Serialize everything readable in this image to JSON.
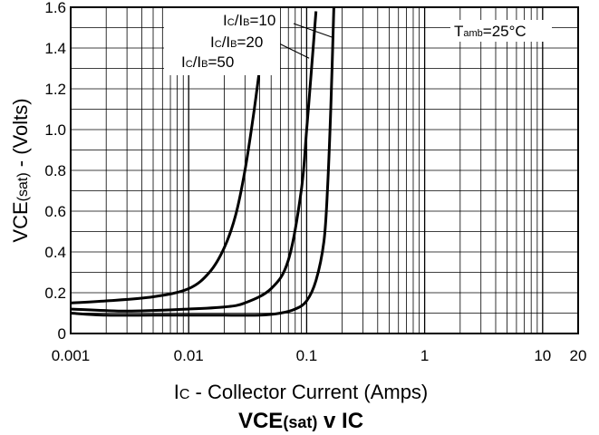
{
  "chart_data": {
    "type": "line",
    "title": {
      "main": "VCE",
      "sub": "(sat)",
      "rest": " v IC"
    },
    "xlabel": {
      "main": "I",
      "sub": "C",
      "rest": " - Collector Current (Amps)"
    },
    "ylabel": {
      "main": "VCE",
      "sub": "(sat)",
      "rest": " - (Volts)"
    },
    "x_scale": "log",
    "xlim": [
      0.001,
      20
    ],
    "ylim": [
      0,
      1.6
    ],
    "grid": true,
    "x_ticks": [
      {
        "value": 0.001,
        "label": "0.001"
      },
      {
        "value": 0.01,
        "label": "0.01"
      },
      {
        "value": 0.1,
        "label": "0.1"
      },
      {
        "value": 1,
        "label": "1"
      },
      {
        "value": 10,
        "label": "10"
      },
      {
        "value": 20,
        "label": "20"
      }
    ],
    "y_ticks": [
      {
        "value": 0,
        "label": "0"
      },
      {
        "value": 0.2,
        "label": "0.2"
      },
      {
        "value": 0.4,
        "label": "0.4"
      },
      {
        "value": 0.6,
        "label": "0.6"
      },
      {
        "value": 0.8,
        "label": "0.8"
      },
      {
        "value": 1.0,
        "label": "1.0"
      },
      {
        "value": 1.2,
        "label": "1.2"
      },
      {
        "value": 1.4,
        "label": "1.4"
      },
      {
        "value": 1.6,
        "label": "1.6"
      }
    ],
    "series": [
      {
        "label_main": "I",
        "label_sub1": "C",
        "label_mid": "/I",
        "label_sub2": "B",
        "label_rest": "=10",
        "x": [
          0.001,
          0.002,
          0.005,
          0.01,
          0.02,
          0.04,
          0.06,
          0.08,
          0.1,
          0.12,
          0.14,
          0.15,
          0.16,
          0.17
        ],
        "y": [
          0.1,
          0.09,
          0.09,
          0.09,
          0.09,
          0.09,
          0.1,
          0.12,
          0.16,
          0.26,
          0.45,
          0.7,
          1.1,
          1.6
        ]
      },
      {
        "label_main": "I",
        "label_sub1": "C",
        "label_mid": "/I",
        "label_sub2": "B",
        "label_rest": "=20",
        "x": [
          0.001,
          0.003,
          0.01,
          0.02,
          0.03,
          0.05,
          0.07,
          0.09,
          0.1,
          0.11,
          0.12
        ],
        "y": [
          0.12,
          0.11,
          0.12,
          0.13,
          0.15,
          0.22,
          0.36,
          0.7,
          1.0,
          1.3,
          1.58
        ]
      },
      {
        "label_main": "I",
        "label_sub1": "C",
        "label_mid": "/I",
        "label_sub2": "B",
        "label_rest": "=50",
        "x": [
          0.001,
          0.002,
          0.005,
          0.01,
          0.015,
          0.02,
          0.025,
          0.03,
          0.035,
          0.04,
          0.043
        ],
        "y": [
          0.15,
          0.16,
          0.18,
          0.22,
          0.3,
          0.42,
          0.58,
          0.8,
          1.05,
          1.3,
          1.42
        ]
      }
    ],
    "annotation": {
      "main": "T",
      "sub": "amb",
      "rest": "=25°C"
    }
  }
}
